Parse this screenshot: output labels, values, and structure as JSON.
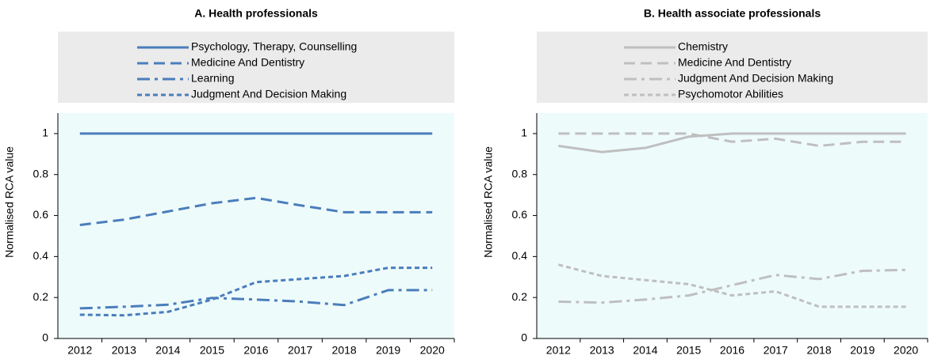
{
  "chart_data": [
    {
      "type": "line",
      "title": "A. Health professionals",
      "y_label": "Normalised RCA value",
      "categories": [
        "2012",
        "2013",
        "2014",
        "2015",
        "2016",
        "2017",
        "2018",
        "2019",
        "2020"
      ],
      "ylim": [
        0,
        1.1
      ],
      "yticks": [
        0,
        0.2,
        0.4,
        0.6,
        0.8,
        1
      ],
      "series": [
        {
          "name": "Psychology, Therapy, Counselling",
          "color": "#4a7ebb",
          "dash": "solid",
          "values": [
            1,
            1,
            1,
            1,
            1,
            1,
            1,
            1,
            1
          ]
        },
        {
          "name": "Medicine And Dentistry",
          "color": "#4a7ebb",
          "dash": "dashed",
          "values": [
            0.554,
            0.58,
            0.62,
            0.66,
            0.686,
            0.65,
            0.616,
            0.616,
            0.616
          ]
        },
        {
          "name": "Learning",
          "color": "#4a7ebb",
          "dash": "dashdot",
          "values": [
            0.147,
            0.155,
            0.165,
            0.198,
            0.19,
            0.18,
            0.163,
            0.236,
            0.236
          ]
        },
        {
          "name": "Judgment And Decision Making",
          "color": "#4a7ebb",
          "dash": "dotted",
          "values": [
            0.116,
            0.113,
            0.13,
            0.19,
            0.275,
            0.29,
            0.305,
            0.345,
            0.345
          ]
        }
      ]
    },
    {
      "type": "line",
      "title": "B. Health associate professionals",
      "y_label": "Normalised RCA value",
      "categories": [
        "2012",
        "2013",
        "2014",
        "2015",
        "2016",
        "2017",
        "2018",
        "2019",
        "2020"
      ],
      "ylim": [
        0,
        1.1
      ],
      "yticks": [
        0,
        0.2,
        0.4,
        0.6,
        0.8,
        1
      ],
      "series": [
        {
          "name": "Chemistry",
          "color": "#bfbfbf",
          "dash": "solid",
          "values": [
            0.94,
            0.91,
            0.93,
            0.985,
            1,
            1,
            1,
            1,
            1
          ]
        },
        {
          "name": "Medicine And Dentistry",
          "color": "#bfbfbf",
          "dash": "dashed",
          "values": [
            1,
            1,
            1,
            1,
            0.96,
            0.975,
            0.94,
            0.96,
            0.96
          ]
        },
        {
          "name": "Judgment And Decision Making",
          "color": "#bfbfbf",
          "dash": "dashdot",
          "values": [
            0.18,
            0.175,
            0.19,
            0.21,
            0.26,
            0.31,
            0.29,
            0.33,
            0.335
          ]
        },
        {
          "name": "Psychomotor Abilities",
          "color": "#bfbfbf",
          "dash": "dotted",
          "values": [
            0.36,
            0.305,
            0.285,
            0.265,
            0.21,
            0.23,
            0.155,
            0.155,
            0.155
          ]
        }
      ]
    }
  ]
}
